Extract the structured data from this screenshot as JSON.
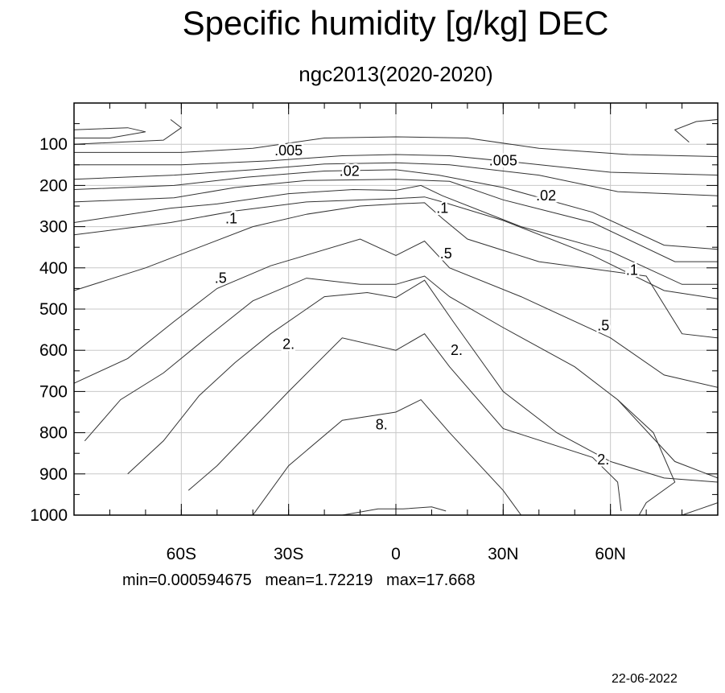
{
  "title": "Specific humidity [g/kg] DEC",
  "subtitle": "ngc2013(2020-2020)",
  "stats": "min=0.000594675   mean=1.72219   max=17.668",
  "date": "22-06-2022",
  "chart_data": {
    "type": "contour",
    "title": "Specific humidity [g/kg] DEC",
    "subtitle": "ngc2013(2020-2020)",
    "x_ticks": [
      {
        "value": -60,
        "label": "60S"
      },
      {
        "value": -30,
        "label": "30S"
      },
      {
        "value": 0,
        "label": "0"
      },
      {
        "value": 30,
        "label": "30N"
      },
      {
        "value": 60,
        "label": "60N"
      }
    ],
    "y_ticks": [
      100,
      200,
      300,
      400,
      500,
      600,
      700,
      800,
      900,
      1000
    ],
    "xlim": [
      -90,
      90
    ],
    "ylim": [
      1000,
      0
    ],
    "grid": true,
    "contour_labels": [
      {
        "text": ".005",
        "x": -30,
        "y": 115
      },
      {
        "text": ".005",
        "x": 30,
        "y": 140
      },
      {
        "text": ".02",
        "x": -13,
        "y": 165
      },
      {
        "text": ".02",
        "x": 42,
        "y": 225
      },
      {
        "text": ".1",
        "x": -46,
        "y": 280
      },
      {
        "text": ".1",
        "x": 13,
        "y": 255
      },
      {
        "text": ".1",
        "x": 66,
        "y": 405
      },
      {
        "text": ".5",
        "x": -49,
        "y": 425
      },
      {
        "text": ".5",
        "x": 14,
        "y": 365
      },
      {
        "text": ".5",
        "x": 58,
        "y": 540
      },
      {
        "text": "2.",
        "x": -30,
        "y": 585
      },
      {
        "text": "2.",
        "x": 17,
        "y": 600
      },
      {
        "text": "2.",
        "x": 58,
        "y": 865
      },
      {
        "text": "8.",
        "x": -4,
        "y": 780
      }
    ],
    "contours": [
      {
        "points": [
          [
            -90,
            65
          ],
          [
            -75,
            60
          ],
          [
            -70,
            70
          ],
          [
            -80,
            85
          ],
          [
            -90,
            85
          ]
        ]
      },
      {
        "points": [
          [
            -63,
            40
          ],
          [
            -60,
            60
          ],
          [
            -65,
            90
          ],
          [
            -90,
            100
          ]
        ]
      },
      {
        "points": [
          [
            82,
            95
          ],
          [
            78,
            65
          ],
          [
            84,
            45
          ],
          [
            90,
            40
          ]
        ]
      },
      {
        "points": [
          [
            -90,
            120
          ],
          [
            -60,
            120
          ],
          [
            -40,
            110
          ],
          [
            -20,
            85
          ],
          [
            0,
            82
          ],
          [
            20,
            85
          ],
          [
            40,
            110
          ],
          [
            65,
            125
          ],
          [
            90,
            130
          ]
        ]
      },
      {
        "points": [
          [
            -90,
            150
          ],
          [
            -60,
            150
          ],
          [
            -35,
            140
          ],
          [
            -15,
            128
          ],
          [
            0,
            125
          ],
          [
            15,
            128
          ],
          [
            35,
            145
          ],
          [
            60,
            168
          ],
          [
            90,
            175
          ]
        ]
      },
      {
        "points": [
          [
            -90,
            185
          ],
          [
            -62,
            175
          ],
          [
            -40,
            162
          ],
          [
            -20,
            148
          ],
          [
            0,
            145
          ],
          [
            15,
            150
          ],
          [
            40,
            175
          ],
          [
            62,
            215
          ],
          [
            90,
            225
          ]
        ]
      },
      {
        "points": [
          [
            -90,
            210
          ],
          [
            -62,
            200
          ],
          [
            -42,
            180
          ],
          [
            -20,
            165
          ],
          [
            0,
            162
          ],
          [
            12,
            175
          ],
          [
            30,
            205
          ],
          [
            55,
            265
          ],
          [
            75,
            345
          ],
          [
            90,
            355
          ]
        ]
      },
      {
        "points": [
          [
            -90,
            240
          ],
          [
            -62,
            230
          ],
          [
            -45,
            205
          ],
          [
            -25,
            188
          ],
          [
            0,
            185
          ],
          [
            15,
            190
          ],
          [
            30,
            235
          ],
          [
            55,
            290
          ],
          [
            78,
            385
          ],
          [
            90,
            385
          ]
        ]
      },
      {
        "points": [
          [
            -90,
            290
          ],
          [
            -63,
            255
          ],
          [
            -50,
            245
          ],
          [
            -30,
            220
          ],
          [
            -12,
            210
          ],
          [
            0,
            212
          ],
          [
            7,
            200
          ],
          [
            13,
            225
          ],
          [
            35,
            300
          ],
          [
            60,
            360
          ],
          [
            80,
            440
          ],
          [
            90,
            440
          ]
        ]
      },
      {
        "points": [
          [
            -90,
            320
          ],
          [
            -63,
            290
          ],
          [
            -45,
            262
          ],
          [
            -25,
            240
          ],
          [
            0,
            232
          ],
          [
            8,
            228
          ],
          [
            13,
            240
          ],
          [
            30,
            285
          ],
          [
            55,
            370
          ],
          [
            75,
            455
          ],
          [
            90,
            475
          ]
        ]
      },
      {
        "points": [
          [
            -90,
            455
          ],
          [
            -70,
            400
          ],
          [
            -55,
            350
          ],
          [
            -40,
            300
          ],
          [
            -25,
            270
          ],
          [
            -10,
            250
          ],
          [
            0,
            245
          ],
          [
            8,
            242
          ],
          [
            13,
            280
          ],
          [
            20,
            330
          ],
          [
            40,
            385
          ],
          [
            70,
            420
          ],
          [
            80,
            560
          ],
          [
            90,
            570
          ]
        ]
      },
      {
        "points": [
          [
            -90,
            680
          ],
          [
            -75,
            620
          ],
          [
            -62,
            530
          ],
          [
            -50,
            450
          ],
          [
            -35,
            395
          ],
          [
            -10,
            330
          ],
          [
            0,
            370
          ],
          [
            8,
            335
          ],
          [
            15,
            400
          ],
          [
            35,
            470
          ],
          [
            60,
            570
          ],
          [
            75,
            660
          ],
          [
            90,
            690
          ]
        ]
      },
      {
        "points": [
          [
            -87,
            820
          ],
          [
            -77,
            720
          ],
          [
            -65,
            655
          ],
          [
            -53,
            570
          ],
          [
            -40,
            480
          ],
          [
            -25,
            425
          ],
          [
            -10,
            440
          ],
          [
            0,
            440
          ],
          [
            8,
            420
          ],
          [
            15,
            470
          ],
          [
            30,
            545
          ],
          [
            50,
            640
          ],
          [
            62,
            720
          ],
          [
            78,
            870
          ],
          [
            90,
            910
          ]
        ]
      },
      {
        "points": [
          [
            -75,
            900
          ],
          [
            -65,
            820
          ],
          [
            -55,
            710
          ],
          [
            -45,
            630
          ],
          [
            -35,
            560
          ],
          [
            -20,
            470
          ],
          [
            -8,
            460
          ],
          [
            0,
            472
          ],
          [
            8,
            430
          ],
          [
            16,
            530
          ],
          [
            30,
            700
          ],
          [
            45,
            800
          ],
          [
            60,
            870
          ],
          [
            75,
            910
          ],
          [
            90,
            920
          ]
        ]
      },
      {
        "points": [
          [
            -58,
            940
          ],
          [
            -50,
            880
          ],
          [
            -40,
            790
          ],
          [
            -30,
            700
          ],
          [
            -15,
            570
          ],
          [
            0,
            600
          ],
          [
            8,
            560
          ],
          [
            15,
            640
          ],
          [
            30,
            790
          ],
          [
            55,
            860
          ],
          [
            62,
            920
          ],
          [
            63,
            990
          ]
        ]
      },
      {
        "points": [
          [
            -40,
            1000
          ],
          [
            -30,
            880
          ],
          [
            -15,
            770
          ],
          [
            0,
            750
          ],
          [
            7,
            720
          ],
          [
            15,
            800
          ],
          [
            30,
            940
          ],
          [
            35,
            1000
          ]
        ]
      },
      {
        "points": [
          [
            -15,
            1000
          ],
          [
            -5,
            985
          ],
          [
            2,
            985
          ],
          [
            10,
            980
          ],
          [
            14,
            990
          ]
        ]
      },
      {
        "points": [
          [
            68,
            1000
          ],
          [
            70,
            970
          ],
          [
            78,
            920
          ],
          [
            72,
            800
          ],
          [
            62,
            720
          ]
        ]
      },
      {
        "points": [
          [
            80,
            1000
          ],
          [
            85,
            985
          ],
          [
            90,
            970
          ]
        ]
      }
    ]
  }
}
